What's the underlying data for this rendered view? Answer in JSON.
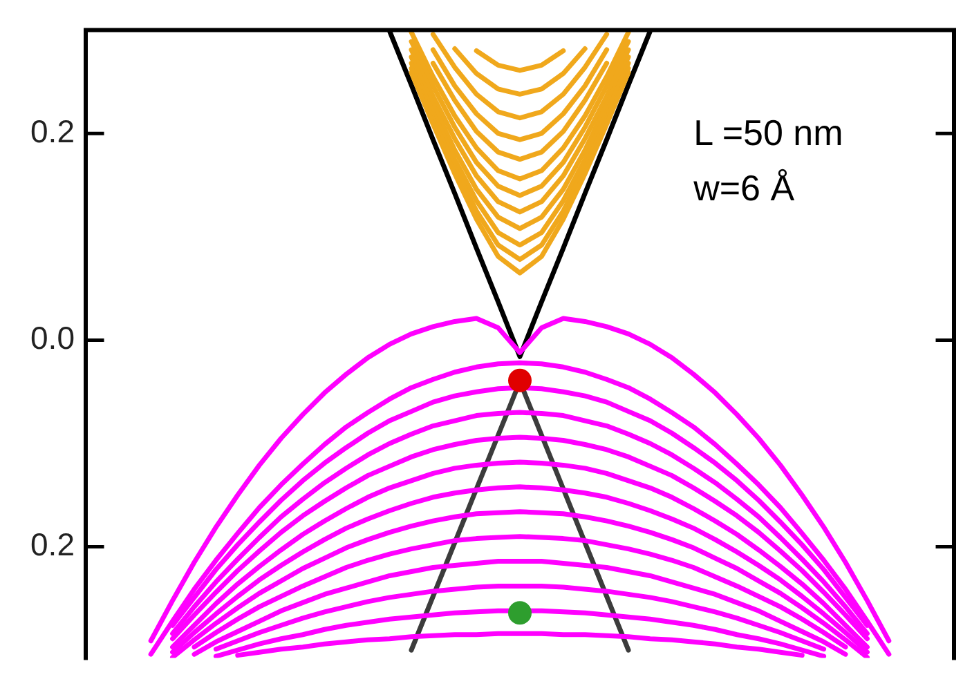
{
  "chart_data": {
    "type": "line",
    "categories": [
      null,
      null,
      null,
      null,
      null,
      null,
      null,
      null,
      null,
      null,
      null,
      null,
      null,
      null,
      null,
      null,
      null,
      null,
      null,
      null,
      null,
      null,
      null,
      null,
      null,
      null,
      null,
      null,
      null,
      null,
      null,
      null,
      null,
      null,
      null,
      null,
      null,
      null,
      null,
      null,
      null
    ],
    "ylim": [
      -0.3075,
      0.3
    ],
    "yticks": [
      {
        "value": 0.2,
        "label": "0.2"
      },
      {
        "value": 0,
        "label": "0.0"
      },
      {
        "value": -0.2,
        "label": "0.2"
      }
    ],
    "tick_labels": "y",
    "marker": "none",
    "line_style": "solid",
    "annotations": [
      "L =50 nm",
      "w=6 Å"
    ],
    "series": [
      {
        "color": "#ff00ff",
        "values": [
          null,
          null,
          null,
          -0.291,
          -0.252,
          -0.215,
          -0.181,
          -0.15,
          -0.121,
          -0.095,
          -0.072,
          -0.051,
          -0.033,
          -0.017,
          -0.004,
          0.006,
          0.013,
          0.018,
          0.021,
          0.012,
          -0.012,
          0.012,
          0.021,
          0.018,
          0.013,
          0.006,
          -0.004,
          -0.017,
          -0.033,
          -0.051,
          -0.072,
          -0.095,
          -0.121,
          -0.15,
          -0.181,
          -0.215,
          -0.252,
          -0.291,
          null,
          null,
          null
        ]
      },
      {
        "color": "#ff00ff",
        "values": [
          null,
          null,
          null,
          -0.304,
          -0.272,
          -0.241,
          -0.213,
          -0.187,
          -0.162,
          -0.14,
          -0.12,
          -0.101,
          -0.084,
          -0.07,
          -0.057,
          -0.046,
          -0.038,
          -0.031,
          -0.026,
          -0.023,
          -0.022,
          -0.023,
          -0.026,
          -0.031,
          -0.038,
          -0.046,
          -0.057,
          -0.07,
          -0.084,
          -0.101,
          -0.12,
          -0.14,
          -0.162,
          -0.187,
          -0.213,
          -0.241,
          -0.272,
          -0.304,
          null,
          null,
          null
        ]
      },
      {
        "color": "#ff00ff",
        "values": [
          null,
          null,
          null,
          null,
          -0.276,
          -0.249,
          -0.222,
          -0.198,
          -0.176,
          -0.155,
          -0.136,
          -0.119,
          -0.104,
          -0.09,
          -0.078,
          -0.069,
          -0.06,
          -0.054,
          -0.05,
          -0.047,
          -0.046,
          -0.047,
          -0.05,
          -0.054,
          -0.06,
          -0.069,
          -0.078,
          -0.09,
          -0.104,
          -0.119,
          -0.136,
          -0.155,
          -0.176,
          -0.198,
          -0.222,
          -0.249,
          -0.276,
          null,
          null,
          null,
          null
        ]
      },
      {
        "color": "#ff00ff",
        "values": [
          null,
          null,
          null,
          null,
          -0.284,
          -0.258,
          -0.234,
          -0.212,
          -0.191,
          -0.171,
          -0.154,
          -0.138,
          -0.124,
          -0.111,
          -0.1,
          -0.091,
          -0.083,
          -0.078,
          -0.073,
          -0.071,
          -0.07,
          -0.071,
          -0.073,
          -0.078,
          -0.083,
          -0.091,
          -0.1,
          -0.111,
          -0.124,
          -0.138,
          -0.154,
          -0.171,
          -0.191,
          -0.212,
          -0.234,
          -0.258,
          -0.284,
          null,
          null,
          null,
          null
        ]
      },
      {
        "color": "#ff00ff",
        "values": [
          null,
          null,
          null,
          null,
          -0.289,
          -0.266,
          -0.244,
          -0.223,
          -0.204,
          -0.186,
          -0.17,
          -0.156,
          -0.143,
          -0.131,
          -0.122,
          -0.113,
          -0.106,
          -0.101,
          -0.097,
          -0.095,
          -0.094,
          -0.095,
          -0.097,
          -0.101,
          -0.106,
          -0.113,
          -0.122,
          -0.131,
          -0.143,
          -0.156,
          -0.17,
          -0.186,
          -0.204,
          -0.223,
          -0.244,
          -0.266,
          -0.289,
          null,
          null,
          null,
          null
        ]
      },
      {
        "color": "#ff00ff",
        "values": [
          null,
          null,
          null,
          null,
          -0.297,
          -0.276,
          -0.255,
          -0.236,
          -0.219,
          -0.203,
          -0.188,
          -0.175,
          -0.163,
          -0.152,
          -0.143,
          -0.136,
          -0.129,
          -0.124,
          -0.121,
          -0.119,
          -0.118,
          -0.119,
          -0.121,
          -0.124,
          -0.129,
          -0.136,
          -0.143,
          -0.152,
          -0.163,
          -0.175,
          -0.188,
          -0.203,
          -0.219,
          -0.236,
          -0.255,
          -0.276,
          -0.297,
          null,
          null,
          null,
          null
        ]
      },
      {
        "color": "#ff00ff",
        "values": [
          null,
          null,
          null,
          null,
          -0.302,
          -0.283,
          -0.265,
          -0.248,
          -0.232,
          -0.218,
          -0.205,
          -0.193,
          -0.182,
          -0.173,
          -0.165,
          -0.158,
          -0.152,
          -0.148,
          -0.145,
          -0.143,
          -0.142,
          -0.143,
          -0.145,
          -0.148,
          -0.152,
          -0.158,
          -0.165,
          -0.173,
          -0.182,
          -0.193,
          -0.205,
          -0.218,
          -0.232,
          -0.248,
          -0.265,
          -0.283,
          -0.302,
          null,
          null,
          null,
          null
        ]
      },
      {
        "color": "#ff00ff",
        "values": [
          null,
          null,
          null,
          null,
          -0.307,
          -0.29,
          -0.274,
          -0.259,
          -0.245,
          -0.233,
          -0.221,
          -0.211,
          -0.201,
          -0.193,
          -0.186,
          -0.18,
          -0.175,
          -0.171,
          -0.168,
          -0.167,
          -0.166,
          -0.167,
          -0.168,
          -0.171,
          -0.175,
          -0.18,
          -0.186,
          -0.193,
          -0.201,
          -0.211,
          -0.221,
          -0.233,
          -0.245,
          -0.259,
          -0.274,
          -0.29,
          -0.307,
          null,
          null,
          null,
          null
        ]
      },
      {
        "color": "#ff00ff",
        "values": [
          null,
          null,
          null,
          null,
          null,
          -0.297,
          -0.283,
          -0.27,
          -0.258,
          -0.248,
          -0.238,
          -0.229,
          -0.22,
          -0.213,
          -0.207,
          -0.202,
          -0.198,
          -0.194,
          -0.192,
          -0.191,
          -0.19,
          -0.191,
          -0.192,
          -0.194,
          -0.198,
          -0.202,
          -0.207,
          -0.213,
          -0.22,
          -0.229,
          -0.238,
          -0.248,
          -0.258,
          -0.27,
          -0.283,
          -0.297,
          null,
          null,
          null,
          null,
          null
        ]
      },
      {
        "color": "#ff00ff",
        "values": [
          null,
          null,
          null,
          null,
          null,
          -0.304,
          -0.292,
          -0.282,
          -0.272,
          -0.262,
          -0.254,
          -0.246,
          -0.24,
          -0.234,
          -0.228,
          -0.224,
          -0.22,
          -0.218,
          -0.216,
          -0.214,
          -0.214,
          -0.214,
          -0.216,
          -0.218,
          -0.22,
          -0.224,
          -0.228,
          -0.234,
          -0.24,
          -0.246,
          -0.254,
          -0.262,
          -0.272,
          -0.282,
          -0.292,
          -0.304,
          null,
          null,
          null,
          null,
          null
        ]
      },
      {
        "color": "#ff00ff",
        "values": [
          null,
          null,
          null,
          null,
          null,
          null,
          -0.299,
          -0.291,
          -0.283,
          -0.276,
          -0.269,
          -0.263,
          -0.258,
          -0.253,
          -0.249,
          -0.246,
          -0.243,
          -0.241,
          -0.239,
          -0.238,
          -0.238,
          -0.238,
          -0.239,
          -0.241,
          -0.243,
          -0.246,
          -0.249,
          -0.253,
          -0.258,
          -0.263,
          -0.269,
          -0.276,
          -0.283,
          -0.291,
          -0.299,
          null,
          null,
          null,
          null,
          null,
          null
        ]
      },
      {
        "color": "#ff00ff",
        "values": [
          null,
          null,
          null,
          null,
          null,
          null,
          -0.306,
          -0.3,
          -0.294,
          -0.289,
          -0.285,
          -0.28,
          -0.276,
          -0.273,
          -0.27,
          -0.268,
          -0.266,
          -0.264,
          -0.263,
          -0.262,
          -0.262,
          -0.262,
          -0.263,
          -0.264,
          -0.266,
          -0.268,
          -0.27,
          -0.273,
          -0.276,
          -0.28,
          -0.285,
          -0.289,
          -0.294,
          -0.3,
          -0.306,
          null,
          null,
          null,
          null,
          null,
          null
        ]
      },
      {
        "color": "#ff00ff",
        "values": [
          null,
          null,
          null,
          null,
          null,
          null,
          null,
          -0.305,
          -0.302,
          -0.299,
          -0.297,
          -0.294,
          -0.292,
          -0.29,
          -0.289,
          -0.287,
          -0.286,
          -0.285,
          -0.285,
          -0.284,
          -0.284,
          -0.284,
          -0.285,
          -0.285,
          -0.286,
          -0.287,
          -0.289,
          -0.29,
          -0.292,
          -0.294,
          -0.297,
          -0.299,
          -0.302,
          -0.305,
          null,
          null,
          null,
          null,
          null,
          null,
          null
        ]
      },
      {
        "color": "#f0a81c",
        "values": [
          null,
          null,
          null,
          null,
          null,
          null,
          null,
          null,
          null,
          null,
          null,
          null,
          null,
          null,
          null,
          0.259,
          0.209,
          0.161,
          0.117,
          0.081,
          0.065,
          0.081,
          0.117,
          0.161,
          0.209,
          0.259,
          null,
          null,
          null,
          null,
          null,
          null,
          null,
          null,
          null,
          null,
          null,
          null,
          null,
          null,
          null
        ]
      },
      {
        "color": "#f0a81c",
        "values": [
          null,
          null,
          null,
          null,
          null,
          null,
          null,
          null,
          null,
          null,
          null,
          null,
          null,
          null,
          null,
          0.263,
          0.214,
          0.167,
          0.125,
          0.092,
          0.078,
          0.092,
          0.125,
          0.167,
          0.214,
          0.263,
          null,
          null,
          null,
          null,
          null,
          null,
          null,
          null,
          null,
          null,
          null,
          null,
          null,
          null,
          null
        ]
      },
      {
        "color": "#f0a81c",
        "values": [
          null,
          null,
          null,
          null,
          null,
          null,
          null,
          null,
          null,
          null,
          null,
          null,
          null,
          null,
          null,
          0.268,
          0.22,
          0.175,
          0.135,
          0.104,
          0.092,
          0.104,
          0.135,
          0.175,
          0.22,
          0.268,
          null,
          null,
          null,
          null,
          null,
          null,
          null,
          null,
          null,
          null,
          null,
          null,
          null,
          null,
          null
        ]
      },
      {
        "color": "#f0a81c",
        "values": [
          null,
          null,
          null,
          null,
          null,
          null,
          null,
          null,
          null,
          null,
          null,
          null,
          null,
          null,
          null,
          0.274,
          0.228,
          0.184,
          0.146,
          0.119,
          0.108,
          0.119,
          0.146,
          0.184,
          0.228,
          0.274,
          null,
          null,
          null,
          null,
          null,
          null,
          null,
          null,
          null,
          null,
          null,
          null,
          null,
          null,
          null
        ]
      },
      {
        "color": "#f0a81c",
        "values": [
          null,
          null,
          null,
          null,
          null,
          null,
          null,
          null,
          null,
          null,
          null,
          null,
          null,
          null,
          null,
          0.281,
          0.236,
          0.195,
          0.159,
          0.134,
          0.124,
          0.134,
          0.159,
          0.195,
          0.236,
          0.281,
          null,
          null,
          null,
          null,
          null,
          null,
          null,
          null,
          null,
          null,
          null,
          null,
          null,
          null,
          null
        ]
      },
      {
        "color": "#f0a81c",
        "values": [
          null,
          null,
          null,
          null,
          null,
          null,
          null,
          null,
          null,
          null,
          null,
          null,
          null,
          null,
          null,
          0.289,
          0.246,
          0.206,
          0.172,
          0.149,
          0.14,
          0.149,
          0.172,
          0.206,
          0.246,
          0.289,
          null,
          null,
          null,
          null,
          null,
          null,
          null,
          null,
          null,
          null,
          null,
          null,
          null,
          null,
          null
        ]
      },
      {
        "color": "#f0a81c",
        "values": [
          null,
          null,
          null,
          null,
          null,
          null,
          null,
          null,
          null,
          null,
          null,
          null,
          null,
          null,
          null,
          0.298,
          0.255,
          0.217,
          0.186,
          0.164,
          0.156,
          0.164,
          0.186,
          0.217,
          0.255,
          0.298,
          null,
          null,
          null,
          null,
          null,
          null,
          null,
          null,
          null,
          null,
          null,
          null,
          null,
          null,
          null
        ]
      },
      {
        "color": "#f0a81c",
        "values": [
          null,
          null,
          null,
          null,
          null,
          null,
          null,
          null,
          null,
          null,
          null,
          null,
          null,
          null,
          null,
          null,
          0.268,
          0.232,
          0.202,
          0.182,
          0.175,
          0.182,
          0.202,
          0.232,
          0.268,
          null,
          null,
          null,
          null,
          null,
          null,
          null,
          null,
          null,
          null,
          null,
          null,
          null,
          null,
          null,
          null
        ]
      },
      {
        "color": "#f0a81c",
        "values": [
          null,
          null,
          null,
          null,
          null,
          null,
          null,
          null,
          null,
          null,
          null,
          null,
          null,
          null,
          null,
          null,
          0.281,
          0.246,
          0.219,
          0.2,
          0.194,
          0.2,
          0.219,
          0.246,
          0.281,
          null,
          null,
          null,
          null,
          null,
          null,
          null,
          null,
          null,
          null,
          null,
          null,
          null,
          null,
          null,
          null
        ]
      },
      {
        "color": "#f0a81c",
        "values": [
          null,
          null,
          null,
          null,
          null,
          null,
          null,
          null,
          null,
          null,
          null,
          null,
          null,
          null,
          null,
          null,
          0.296,
          0.264,
          0.238,
          0.221,
          0.215,
          0.221,
          0.238,
          0.264,
          0.296,
          null,
          null,
          null,
          null,
          null,
          null,
          null,
          null,
          null,
          null,
          null,
          null,
          null,
          null,
          null,
          null
        ]
      },
      {
        "color": "#f0a81c",
        "values": [
          null,
          null,
          null,
          null,
          null,
          null,
          null,
          null,
          null,
          null,
          null,
          null,
          null,
          null,
          null,
          null,
          null,
          0.282,
          0.258,
          0.243,
          0.238,
          0.243,
          0.258,
          0.282,
          null,
          null,
          null,
          null,
          null,
          null,
          null,
          null,
          null,
          null,
          null,
          null,
          null,
          null,
          null,
          null,
          null
        ]
      },
      {
        "color": "#f0a81c",
        "values": [
          null,
          null,
          null,
          null,
          null,
          null,
          null,
          null,
          null,
          null,
          null,
          null,
          null,
          null,
          null,
          null,
          null,
          null,
          0.28,
          0.266,
          0.261,
          0.266,
          0.28,
          null,
          null,
          null,
          null,
          null,
          null,
          null,
          null,
          null,
          null,
          null,
          null,
          null,
          null,
          null,
          null,
          null,
          null
        ]
      },
      {
        "color": "#000000",
        "values": [
          null,
          null,
          null,
          null,
          null,
          null,
          null,
          null,
          null,
          null,
          null,
          null,
          null,
          null,
          0.299,
          0.247,
          0.194,
          0.142,
          0.089,
          0.037,
          -0.016,
          0.037,
          0.089,
          0.142,
          0.194,
          0.247,
          0.299,
          null,
          null,
          null,
          null,
          null,
          null,
          null,
          null,
          null,
          null,
          null,
          null,
          null,
          null
        ]
      },
      {
        "color": "#3c3c3c",
        "values": [
          null,
          null,
          null,
          null,
          null,
          null,
          null,
          null,
          null,
          null,
          null,
          null,
          null,
          null,
          null,
          -0.3,
          -0.248,
          -0.196,
          -0.144,
          -0.092,
          -0.04,
          -0.092,
          -0.144,
          -0.196,
          -0.248,
          -0.3,
          null,
          null,
          null,
          null,
          null,
          null,
          null,
          null,
          null,
          null,
          null,
          null,
          null,
          null,
          null
        ]
      },
      {
        "type": "scatter",
        "marker": "circle",
        "color": "#e00000",
        "values": [
          null,
          null,
          null,
          null,
          null,
          null,
          null,
          null,
          null,
          null,
          null,
          null,
          null,
          null,
          null,
          null,
          null,
          null,
          null,
          null,
          -0.039,
          null,
          null,
          null,
          null,
          null,
          null,
          null,
          null,
          null,
          null,
          null,
          null,
          null,
          null,
          null,
          null,
          null,
          null,
          null,
          null
        ]
      },
      {
        "type": "scatter",
        "marker": "circle",
        "color": "#2e9e2e",
        "values": [
          null,
          null,
          null,
          null,
          null,
          null,
          null,
          null,
          null,
          null,
          null,
          null,
          null,
          null,
          null,
          null,
          null,
          null,
          null,
          null,
          -0.264,
          null,
          null,
          null,
          null,
          null,
          null,
          null,
          null,
          null,
          null,
          null,
          null,
          null,
          null,
          null,
          null,
          null,
          null,
          null,
          null
        ]
      }
    ]
  }
}
